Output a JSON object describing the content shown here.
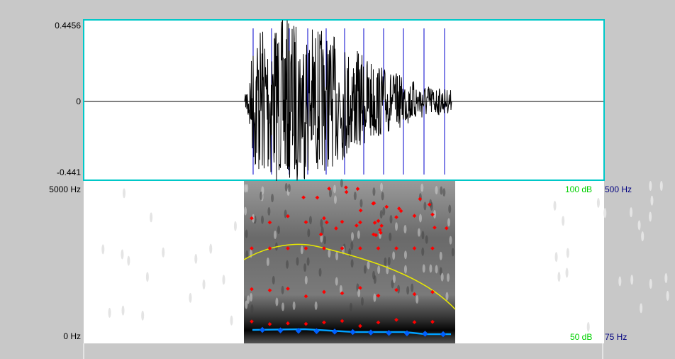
{
  "waveform": {
    "max_label": "0.4456",
    "zero_label": "0",
    "min_label": "-0.441"
  },
  "spectrogram": {
    "top_label": "5000 Hz",
    "bottom_label": "0 Hz",
    "intensity_top": "100 dB",
    "pitch_top": "500 Hz",
    "intensity_bottom": "50 dB",
    "pitch_bottom": "75 Hz"
  }
}
